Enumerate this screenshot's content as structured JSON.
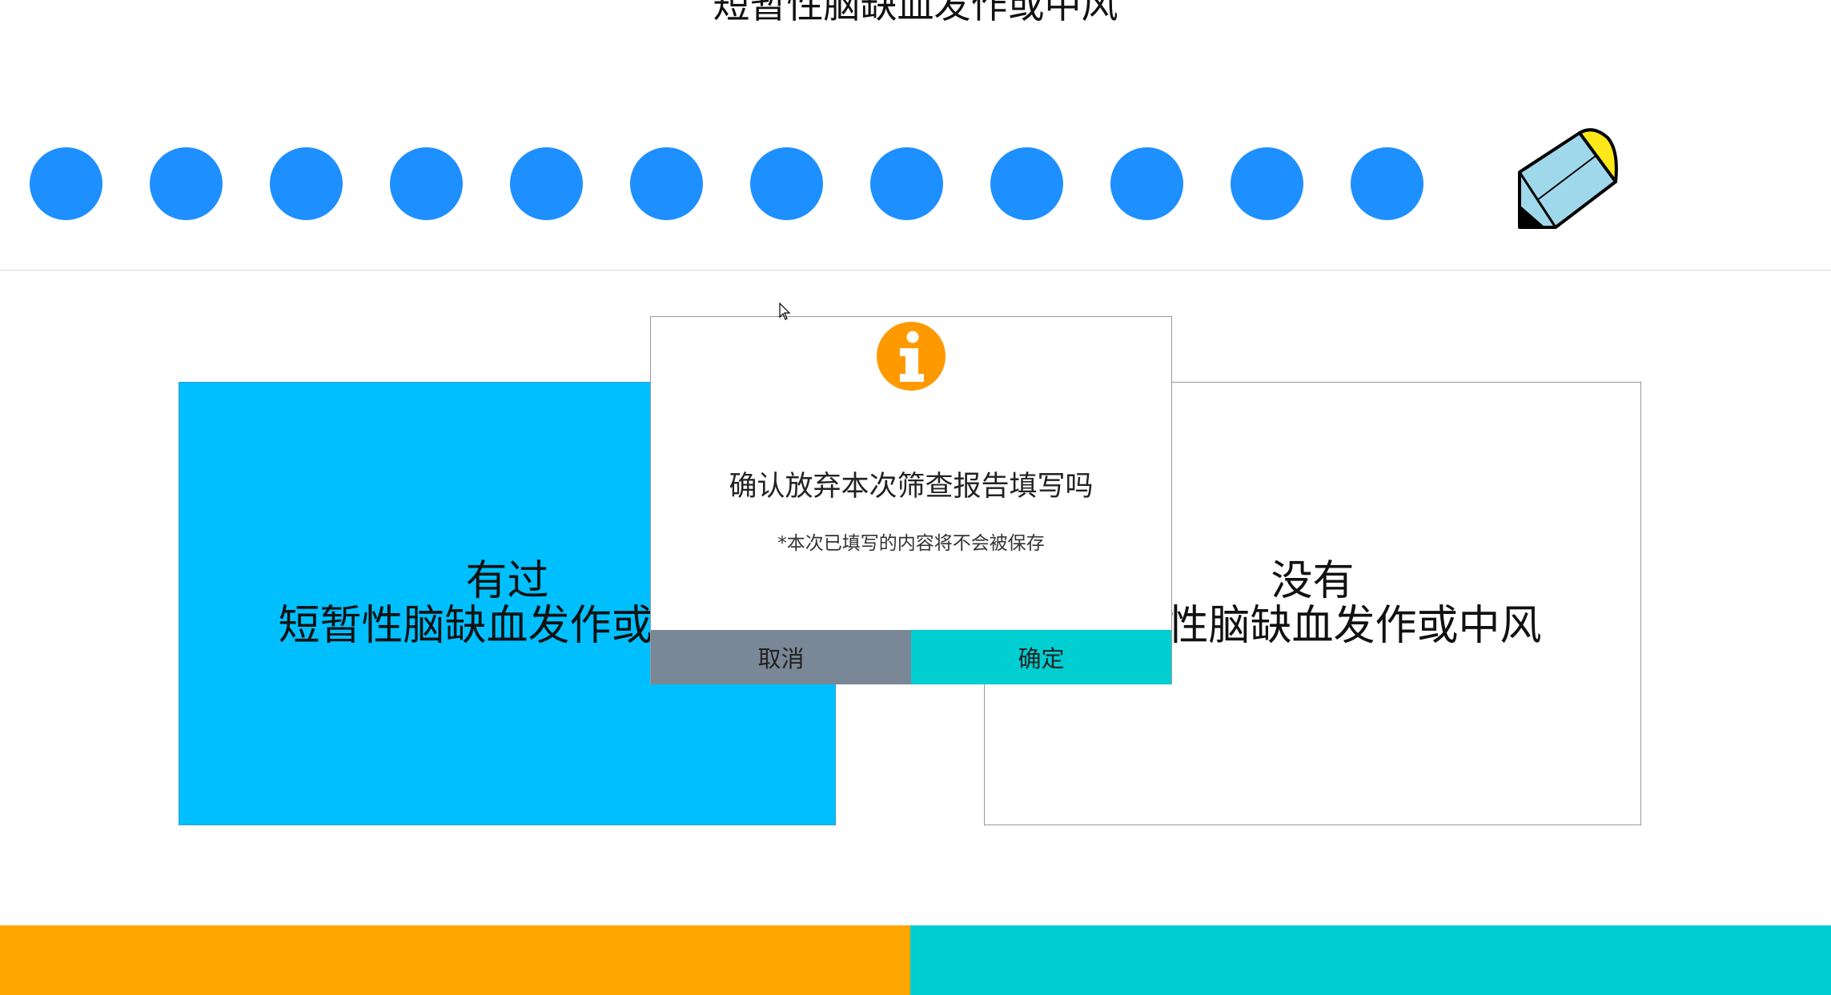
{
  "question": {
    "title": "短暂性脑缺血发作或中风"
  },
  "progress": {
    "dot_count": 12,
    "dot_color": "#1e8fff"
  },
  "options": {
    "yes": {
      "line1": "有过",
      "line2": "短暂性脑缺血发作或中风"
    },
    "no": {
      "line1": "没有",
      "line2": "短暂性脑缺血发作或中风"
    },
    "yes_color": "#00bfff"
  },
  "dialog": {
    "icon": "info-icon",
    "message": "确认放弃本次筛查报告填写吗",
    "note": "*本次已填写的内容将不会被保存",
    "cancel_label": "取消",
    "confirm_label": "确定",
    "cancel_color": "#798796",
    "confirm_color": "#00ced1"
  },
  "footer": {
    "left_color": "#ffa500",
    "right_color": "#00ced1"
  },
  "edit": {
    "icon": "pencil-icon"
  }
}
